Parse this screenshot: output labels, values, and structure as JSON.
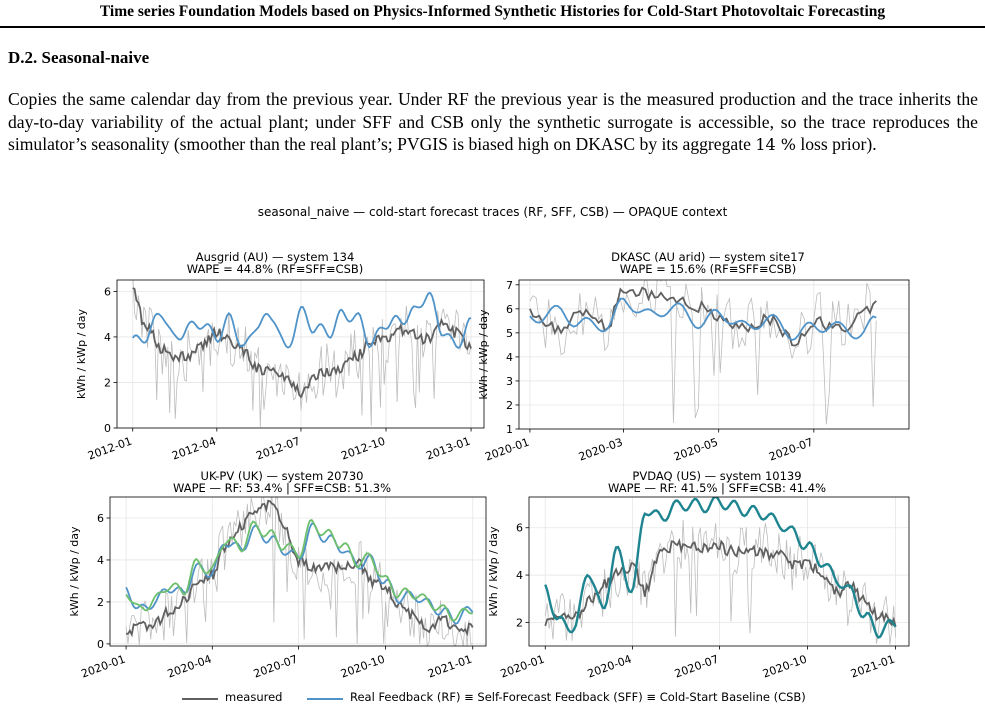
{
  "header": {
    "title": "Time series Foundation Models based on Physics-Informed Synthetic Histories for Cold-Start Photovoltaic Forecasting"
  },
  "section": {
    "heading": "D.2. Seasonal-naive",
    "paragraph_a": "Copies the same calendar day from the previous year. Under RF the previous year is the measured production and the trace inherits the day-to-day variability of the actual plant; under SFF and CSB only the synthetic surrogate is accessible, so the trace reproduces the simulator’s seasonality (smoother than the real plant’s; PVGIS is biased high on DKASC by its aggregate ",
    "paragraph_math": "14 %",
    "paragraph_b": " loss prior)."
  },
  "figure": {
    "title": "seasonal_naive — cold-start forecast traces (RF, SFF, CSB) — OPAQUE context",
    "ylabel": "kWh / kWp / day",
    "legend": {
      "measured": "measured",
      "forecast": "Real Feedback (RF) ≡ Self-Forecast Feedback (SFF) ≡ Cold-Start Baseline (CSB)"
    },
    "colors": {
      "measured": "#606060",
      "raw": "#bdbdbd",
      "rf": "#4f93c8",
      "sff": "#1e8590",
      "csb": "#6dbf6d"
    }
  },
  "chart_data": [
    {
      "type": "line",
      "title": "Ausgrid (AU) — system 134",
      "subtitle": "WAPE = 44.8% (RF≡SFF≡CSB)",
      "xlabel": "",
      "ylabel": "kWh / kWp / day",
      "xticks": [
        "2012-01",
        "2012-04",
        "2012-07",
        "2012-10",
        "2013-01"
      ],
      "ylim": [
        0,
        6.5
      ],
      "yticks": [
        0,
        2,
        4,
        6
      ],
      "grid": true,
      "series": [
        {
          "name": "measured",
          "x": [
            "2012-01-01",
            "2012-01-15",
            "2012-02-01",
            "2012-02-15",
            "2012-03-01",
            "2012-03-15",
            "2012-04-01",
            "2012-04-15",
            "2012-05-01",
            "2012-05-15",
            "2012-06-01",
            "2012-06-15",
            "2012-07-01",
            "2012-07-15",
            "2012-08-01",
            "2012-08-15",
            "2012-09-01",
            "2012-09-15",
            "2012-10-01",
            "2012-10-15",
            "2012-11-01",
            "2012-11-15",
            "2012-12-01",
            "2012-12-15",
            "2013-01-01"
          ],
          "values": [
            6.0,
            4.5,
            3.5,
            3.0,
            3.2,
            3.5,
            4.2,
            3.8,
            3.4,
            2.6,
            2.5,
            2.2,
            1.6,
            2.3,
            2.5,
            2.7,
            3.2,
            3.8,
            4.0,
            4.3,
            4.1,
            3.9,
            4.5,
            4.2,
            3.6
          ]
        },
        {
          "name": "Real Feedback (RF) ≡ Self-Forecast Feedback (SFF) ≡ Cold-Start Baseline (CSB)",
          "x": [
            "2012-01-01",
            "2012-01-15",
            "2012-02-01",
            "2012-02-15",
            "2012-03-01",
            "2012-03-15",
            "2012-04-01",
            "2012-04-15",
            "2012-05-01",
            "2012-05-15",
            "2012-06-01",
            "2012-06-15",
            "2012-07-01",
            "2012-07-15",
            "2012-08-01",
            "2012-08-15",
            "2012-09-01",
            "2012-09-15",
            "2012-10-01",
            "2012-10-15",
            "2012-11-01",
            "2012-11-15",
            "2012-12-01",
            "2012-12-15",
            "2013-01-01"
          ],
          "values": [
            3.8,
            4.0,
            5.1,
            3.9,
            4.4,
            4.6,
            4.0,
            4.8,
            3.5,
            4.6,
            4.9,
            3.4,
            5.1,
            4.4,
            4.2,
            5.0,
            4.8,
            3.7,
            4.6,
            4.7,
            5.1,
            5.9,
            4.3,
            3.6,
            4.6
          ]
        }
      ]
    },
    {
      "type": "line",
      "title": "DKASC (AU arid) — system site17",
      "subtitle": "WAPE = 15.6% (RF≡SFF≡CSB)",
      "xlabel": "",
      "ylabel": "kWh / kWp / day",
      "xticks": [
        "2020-01",
        "2020-03",
        "2020-05",
        "2020-07"
      ],
      "ylim": [
        1,
        7.2
      ],
      "yticks": [
        1,
        2,
        3,
        4,
        5,
        6,
        7
      ],
      "grid": true,
      "series": [
        {
          "name": "measured",
          "x": [
            "2020-01-01",
            "2020-01-20",
            "2020-02-01",
            "2020-02-20",
            "2020-03-01",
            "2020-03-20",
            "2020-04-01",
            "2020-04-20",
            "2020-05-01",
            "2020-05-20",
            "2020-06-01",
            "2020-06-20",
            "2020-07-01",
            "2020-07-20",
            "2020-08-01",
            "2020-08-10"
          ],
          "values": [
            5.8,
            5.1,
            6.0,
            5.3,
            6.9,
            6.6,
            6.3,
            6.1,
            5.5,
            5.3,
            5.6,
            4.6,
            5.5,
            5.1,
            5.8,
            6.2
          ]
        },
        {
          "name": "Real Feedback (RF) ≡ Self-Forecast Feedback (SFF) ≡ Cold-Start Baseline (CSB)",
          "x": [
            "2020-01-01",
            "2020-01-20",
            "2020-02-01",
            "2020-02-20",
            "2020-03-01",
            "2020-03-20",
            "2020-04-01",
            "2020-04-20",
            "2020-05-01",
            "2020-05-20",
            "2020-06-01",
            "2020-06-20",
            "2020-07-01",
            "2020-07-20",
            "2020-08-01",
            "2020-08-10"
          ],
          "values": [
            5.6,
            5.9,
            5.4,
            5.3,
            6.3,
            5.7,
            6.1,
            5.4,
            5.8,
            5.2,
            5.6,
            4.9,
            5.3,
            5.2,
            4.9,
            5.6
          ]
        }
      ]
    },
    {
      "type": "line",
      "title": "UK-PV (UK) — system 20730",
      "subtitle": "WAPE — RF: 53.4% | SFF≡CSB: 51.3%",
      "xlabel": "",
      "ylabel": "kWh / kWp / day",
      "xticks": [
        "2020-01",
        "2020-04",
        "2020-07",
        "2020-10",
        "2021-01"
      ],
      "ylim": [
        -0.1,
        7
      ],
      "yticks": [
        0,
        2,
        4,
        6
      ],
      "grid": true,
      "series": [
        {
          "name": "measured",
          "x": [
            "2020-01-01",
            "2020-01-15",
            "2020-02-01",
            "2020-02-15",
            "2020-03-01",
            "2020-03-15",
            "2020-04-01",
            "2020-04-15",
            "2020-05-01",
            "2020-05-15",
            "2020-06-01",
            "2020-06-15",
            "2020-07-01",
            "2020-07-15",
            "2020-08-01",
            "2020-08-15",
            "2020-09-01",
            "2020-09-15",
            "2020-10-01",
            "2020-10-15",
            "2020-11-01",
            "2020-11-15",
            "2020-12-01",
            "2020-12-15",
            "2021-01-01"
          ],
          "values": [
            0.5,
            0.8,
            1.0,
            1.5,
            2.0,
            2.8,
            3.3,
            4.6,
            5.6,
            6.3,
            6.6,
            5.8,
            4.0,
            3.6,
            3.8,
            3.6,
            3.9,
            3.0,
            2.7,
            1.8,
            1.3,
            0.7,
            1.3,
            0.6,
            0.8
          ]
        },
        {
          "name": "RF",
          "x": [
            "2020-01-01",
            "2020-01-15",
            "2020-02-01",
            "2020-02-15",
            "2020-03-01",
            "2020-03-15",
            "2020-04-01",
            "2020-04-15",
            "2020-05-01",
            "2020-05-15",
            "2020-06-01",
            "2020-06-15",
            "2020-07-01",
            "2020-07-15",
            "2020-08-01",
            "2020-08-15",
            "2020-09-01",
            "2020-09-15",
            "2020-10-01",
            "2020-10-15",
            "2020-11-01",
            "2020-11-15",
            "2020-12-01",
            "2020-12-15",
            "2021-01-01"
          ],
          "values": [
            2.6,
            1.6,
            2.0,
            2.7,
            2.4,
            3.6,
            3.4,
            4.9,
            4.5,
            5.4,
            5.0,
            4.5,
            4.1,
            5.5,
            5.0,
            4.6,
            3.8,
            4.0,
            2.9,
            2.2,
            2.3,
            1.9,
            1.5,
            1.2,
            1.7
          ]
        },
        {
          "name": "SFF≡CSB",
          "x": [
            "2020-01-01",
            "2020-01-15",
            "2020-02-01",
            "2020-02-15",
            "2020-03-01",
            "2020-03-15",
            "2020-04-01",
            "2020-04-15",
            "2020-05-01",
            "2020-05-15",
            "2020-06-01",
            "2020-06-15",
            "2020-07-01",
            "2020-07-15",
            "2020-08-01",
            "2020-08-15",
            "2020-09-01",
            "2020-09-15",
            "2020-10-01",
            "2020-10-15",
            "2020-11-01",
            "2020-11-15",
            "2020-12-01",
            "2020-12-15",
            "2021-01-01"
          ],
          "values": [
            2.5,
            1.6,
            2.1,
            2.8,
            2.5,
            3.8,
            3.5,
            5.0,
            4.6,
            5.6,
            5.2,
            4.7,
            4.3,
            5.7,
            5.2,
            4.8,
            3.9,
            4.1,
            3.0,
            2.4,
            2.4,
            2.0,
            1.6,
            1.3,
            1.7
          ]
        }
      ]
    },
    {
      "type": "line",
      "title": "PVDAQ (US) — system 10139",
      "subtitle": "WAPE — RF: 41.5% | SFF≡CSB: 41.4%",
      "xlabel": "",
      "ylabel": "kWh / kWp / day",
      "xticks": [
        "2020-01",
        "2020-04",
        "2020-07",
        "2020-10",
        "2021-01"
      ],
      "ylim": [
        1,
        7.3
      ],
      "yticks": [
        2,
        4,
        6
      ],
      "grid": true,
      "series": [
        {
          "name": "measured",
          "x": [
            "2020-01-01",
            "2020-01-15",
            "2020-02-01",
            "2020-02-15",
            "2020-03-01",
            "2020-03-15",
            "2020-04-01",
            "2020-04-15",
            "2020-05-01",
            "2020-05-15",
            "2020-06-01",
            "2020-06-15",
            "2020-07-01",
            "2020-07-15",
            "2020-08-01",
            "2020-08-15",
            "2020-09-01",
            "2020-09-15",
            "2020-10-01",
            "2020-10-15",
            "2020-11-01",
            "2020-11-15",
            "2020-12-01",
            "2020-12-15",
            "2021-01-01"
          ],
          "values": [
            1.9,
            2.3,
            2.2,
            2.9,
            3.6,
            4.0,
            4.3,
            3.3,
            5.1,
            5.2,
            5.4,
            5.1,
            5.2,
            5.0,
            5.1,
            4.9,
            4.8,
            4.5,
            4.4,
            4.2,
            3.2,
            3.6,
            2.8,
            2.3,
            2.0
          ]
        },
        {
          "name": "Real Feedback (RF) ≡ Self-Forecast Feedback (SFF) ≡ Cold-Start Baseline (CSB)",
          "x": [
            "2020-01-01",
            "2020-01-15",
            "2020-02-01",
            "2020-02-15",
            "2020-03-01",
            "2020-03-15",
            "2020-04-01",
            "2020-04-15",
            "2020-05-01",
            "2020-05-15",
            "2020-06-01",
            "2020-06-15",
            "2020-07-01",
            "2020-07-15",
            "2020-08-01",
            "2020-08-15",
            "2020-09-01",
            "2020-09-15",
            "2020-10-01",
            "2020-10-15",
            "2020-11-01",
            "2020-11-15",
            "2020-12-01",
            "2020-12-15",
            "2021-01-01"
          ],
          "values": [
            3.5,
            2.0,
            1.8,
            4.2,
            2.5,
            5.0,
            3.4,
            6.8,
            6.4,
            6.9,
            7.0,
            6.9,
            7.1,
            6.9,
            6.7,
            6.6,
            6.2,
            5.8,
            5.2,
            4.6,
            3.8,
            3.3,
            2.2,
            1.6,
            2.0
          ]
        }
      ]
    }
  ]
}
